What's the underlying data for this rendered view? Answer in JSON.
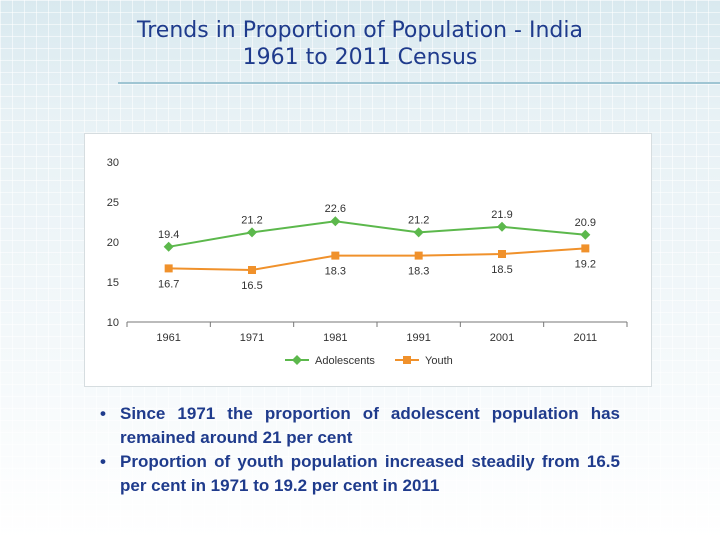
{
  "slide": {
    "title_line1": "Trends in Proportion of Population  - India",
    "title_line2": "1961 to 2011 Census",
    "bullets": [
      "Since 1971 the proportion of adolescent population has remained around 21 per cent",
      "Proportion of youth population increased steadily from 16.5 per cent in 1971 to 19.2 per cent in 2011"
    ],
    "bullet_glyph": "•"
  },
  "chart_data": {
    "type": "line",
    "title": "",
    "xlabel": "",
    "ylabel": "",
    "categories": [
      "1961",
      "1971",
      "1981",
      "1991",
      "2001",
      "2011"
    ],
    "ylim": [
      10,
      30
    ],
    "yticks": [
      10,
      15,
      20,
      25,
      30
    ],
    "legend": "bottom",
    "series": [
      {
        "name": "Adolescents",
        "color": "#5cb84c",
        "marker": "diamond",
        "values": [
          19.4,
          21.2,
          22.6,
          21.2,
          21.9,
          20.9
        ],
        "labels": [
          "19.4",
          "21.2",
          "22.6",
          "21.2",
          "21.9",
          "20.9"
        ],
        "label_position": "above"
      },
      {
        "name": "Youth",
        "color": "#f0912b",
        "marker": "square",
        "values": [
          16.7,
          16.5,
          18.3,
          18.3,
          18.5,
          19.2
        ],
        "labels": [
          "16.7",
          "16.5",
          "18.3",
          "18.3",
          "18.5",
          "19.2"
        ],
        "label_position": "below"
      }
    ]
  }
}
